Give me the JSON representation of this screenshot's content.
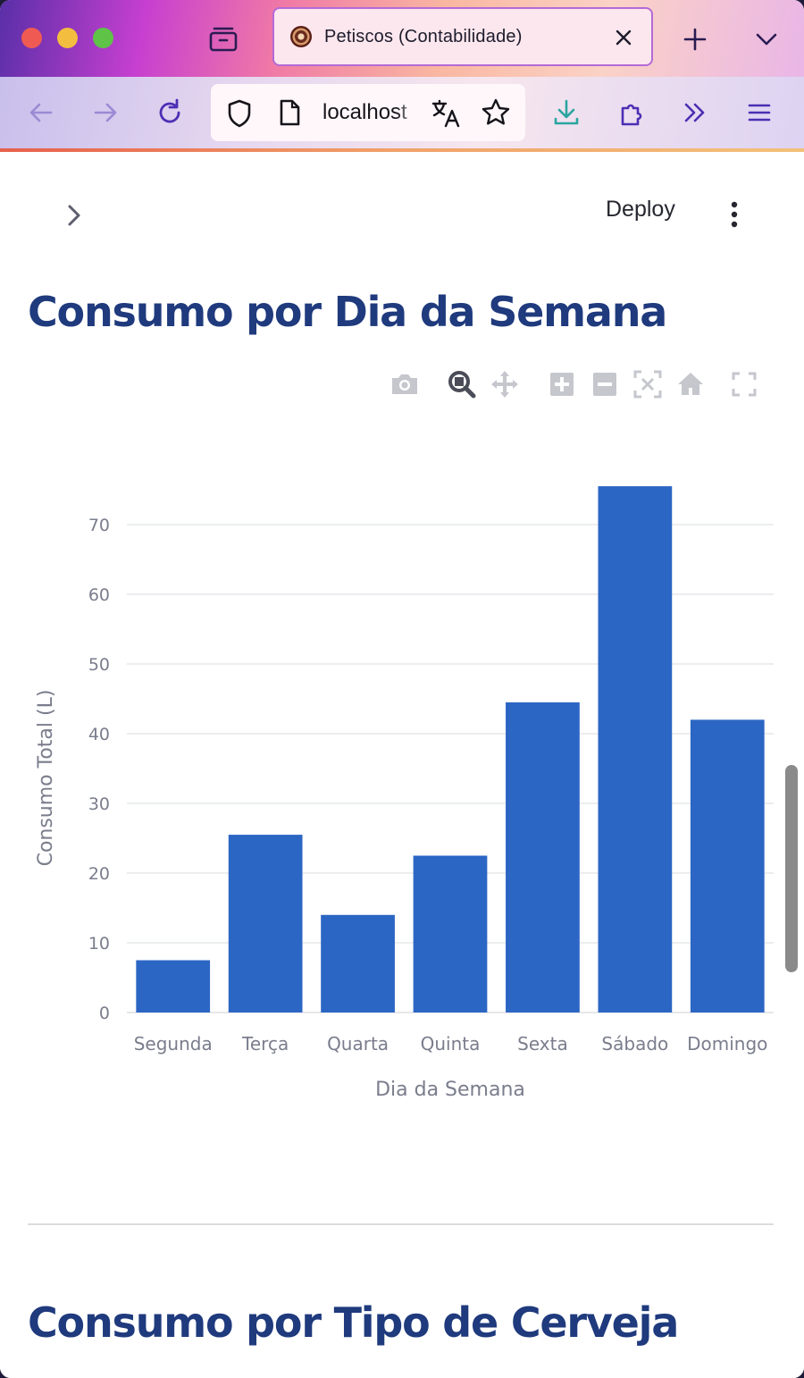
{
  "browser": {
    "tab_title": "Petiscos (Contabilidade)",
    "url": "localhost"
  },
  "app": {
    "deploy_label": "Deploy"
  },
  "headings": {
    "section1": "Consumo por Dia da Semana",
    "section2": "Consumo por Tipo de Cerveja"
  },
  "icons": {
    "modebar": [
      "camera-icon",
      "zoom-icon",
      "pan-icon",
      "zoom-in-icon",
      "zoom-out-icon",
      "autoscale-icon",
      "reset-axes-icon",
      "fullscreen-icon"
    ]
  },
  "colors": {
    "bar": "#2c66c4",
    "heading": "#1f3a7d",
    "axis_text": "#7a7d8c",
    "grid": "#e6e7ea"
  },
  "chart_data": {
    "type": "bar",
    "categories": [
      "Segunda",
      "Terça",
      "Quarta",
      "Quinta",
      "Sexta",
      "Sábado",
      "Domingo"
    ],
    "values": [
      7.5,
      25.5,
      14,
      22.5,
      44.5,
      75.5,
      42
    ],
    "xlabel": "Dia da Semana",
    "ylabel": "Consumo Total (L)",
    "yticks": [
      0,
      10,
      20,
      30,
      40,
      50,
      60,
      70
    ],
    "ylim": [
      0,
      79.5
    ],
    "grid": true
  }
}
